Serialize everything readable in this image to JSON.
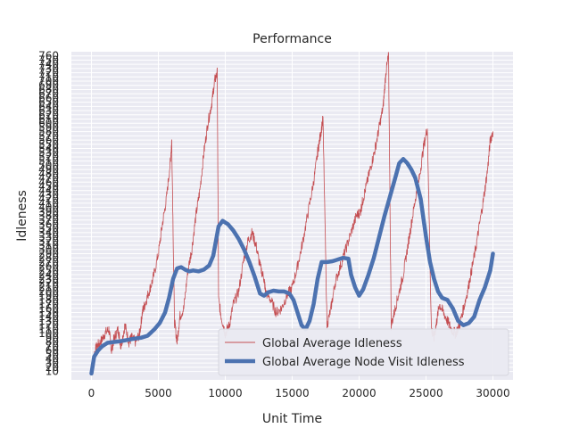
{
  "chart_data": {
    "type": "line",
    "title": "Performance",
    "xlabel": "Unit Time",
    "ylabel": "Idleness",
    "xlim": [
      -1500,
      31500
    ],
    "ylim": [
      -10,
      770
    ],
    "x_ticks": [
      0,
      5000,
      10000,
      15000,
      20000,
      25000,
      30000
    ],
    "x_tick_labels": [
      "0",
      "5000",
      "10000",
      "15000",
      "20000",
      "25000",
      "30000"
    ],
    "y_ticks": [
      10,
      20,
      30,
      40,
      50,
      60,
      70,
      80,
      90,
      100,
      110,
      120,
      130,
      140,
      150,
      160,
      170,
      180,
      190,
      200,
      210,
      220,
      230,
      240,
      250,
      260,
      270,
      280,
      290,
      300,
      310,
      320,
      330,
      340,
      350,
      360,
      370,
      380,
      390,
      400,
      410,
      420,
      430,
      440,
      450,
      460,
      470,
      480,
      490,
      500,
      510,
      520,
      530,
      540,
      550,
      560,
      570,
      580,
      590,
      600,
      610,
      620,
      630,
      640,
      650,
      660,
      670,
      680,
      690,
      700,
      710,
      720,
      730,
      740,
      750,
      760
    ],
    "y_tick_labels": [
      "10",
      "20",
      "30",
      "40",
      "50",
      "60",
      "70",
      "80",
      "90",
      "100",
      "110",
      "120",
      "130",
      "140",
      "150",
      "160",
      "170",
      "180",
      "190",
      "200",
      "210",
      "220",
      "230",
      "240",
      "250",
      "260",
      "270",
      "280",
      "290",
      "300",
      "310",
      "320",
      "330",
      "340",
      "350",
      "360",
      "370",
      "380",
      "390",
      "400",
      "410",
      "420",
      "430",
      "440",
      "450",
      "460",
      "470",
      "480",
      "490",
      "500",
      "510",
      "520",
      "530",
      "540",
      "550",
      "560",
      "570",
      "580",
      "590",
      "600",
      "610",
      "620",
      "630",
      "640",
      "650",
      "660",
      "670",
      "680",
      "690",
      "700",
      "710",
      "720",
      "730",
      "740",
      "750",
      "760"
    ],
    "grid": true,
    "legend_position": "lower-right",
    "series": [
      {
        "name": "Global Average Idleness",
        "color": "#c44e52",
        "style": "thin-noisy",
        "x": [
          0,
          200,
          400,
          700,
          1000,
          1300,
          1500,
          1700,
          2000,
          2200,
          2500,
          2800,
          3000,
          3300,
          3600,
          3800,
          4000,
          4300,
          4600,
          5000,
          5300,
          5600,
          5900,
          6000,
          6200,
          6400,
          6600,
          6900,
          7200,
          7500,
          7800,
          8100,
          8400,
          8700,
          9000,
          9200,
          9400,
          9500,
          9700,
          10000,
          10300,
          10600,
          11000,
          11400,
          11700,
          12000,
          12300,
          12600,
          12900,
          13000,
          13400,
          13800,
          14200,
          14600,
          15000,
          15400,
          15800,
          16200,
          16600,
          16900,
          17100,
          17300,
          17600,
          17900,
          18200,
          18600,
          19000,
          19400,
          19800,
          20100,
          20300,
          20600,
          20900,
          21200,
          21500,
          21800,
          22000,
          22200,
          22400,
          22700,
          23000,
          23300,
          23600,
          23900,
          24200,
          24500,
          24800,
          25100,
          25400,
          25600,
          25800,
          26000,
          26300,
          26600,
          26900,
          27200,
          27500,
          27800,
          28100,
          28400,
          28700,
          29000,
          29300,
          29600,
          29800,
          30000
        ],
        "y": [
          10,
          50,
          70,
          80,
          100,
          110,
          60,
          90,
          110,
          70,
          120,
          80,
          90,
          80,
          100,
          150,
          170,
          200,
          230,
          290,
          360,
          420,
          510,
          560,
          130,
          80,
          140,
          160,
          250,
          300,
          380,
          440,
          530,
          600,
          650,
          700,
          720,
          180,
          140,
          100,
          120,
          170,
          200,
          280,
          320,
          340,
          310,
          260,
          230,
          200,
          180,
          150,
          160,
          190,
          210,
          260,
          320,
          390,
          460,
          530,
          570,
          610,
          120,
          160,
          220,
          260,
          300,
          340,
          380,
          390,
          420,
          460,
          500,
          540,
          590,
          640,
          720,
          760,
          120,
          160,
          200,
          240,
          300,
          360,
          420,
          470,
          540,
          590,
          110,
          90,
          130,
          170,
          150,
          130,
          110,
          100,
          120,
          160,
          200,
          250,
          300,
          360,
          420,
          490,
          560,
          580
        ]
      },
      {
        "name": "Global Average Node Visit Idleness",
        "color": "#4c72b0",
        "style": "thick-smooth",
        "x": [
          0,
          200,
          500,
          800,
          1200,
          1700,
          2200,
          2700,
          3200,
          3700,
          4200,
          4700,
          5100,
          5500,
          5800,
          6100,
          6400,
          6700,
          7000,
          7300,
          7600,
          8000,
          8400,
          8800,
          9100,
          9300,
          9500,
          9800,
          10200,
          10600,
          11000,
          11400,
          11800,
          12200,
          12600,
          12900,
          13200,
          13600,
          14000,
          14400,
          14800,
          15100,
          15400,
          15700,
          16000,
          16300,
          16600,
          16900,
          17200,
          17600,
          18000,
          18400,
          18800,
          19200,
          19400,
          19700,
          20000,
          20300,
          20700,
          21100,
          21500,
          21900,
          22300,
          22700,
          23000,
          23300,
          23600,
          23900,
          24200,
          24600,
          25000,
          25300,
          25600,
          25900,
          26200,
          26600,
          27000,
          27400,
          27800,
          28200,
          28600,
          29000,
          29400,
          29800,
          30000
        ],
        "y": [
          5,
          45,
          60,
          70,
          78,
          80,
          82,
          85,
          88,
          90,
          95,
          110,
          125,
          150,
          185,
          230,
          255,
          258,
          252,
          248,
          250,
          248,
          252,
          262,
          285,
          320,
          355,
          368,
          360,
          345,
          325,
          300,
          270,
          235,
          195,
          190,
          198,
          202,
          200,
          200,
          195,
          180,
          150,
          120,
          110,
          130,
          170,
          230,
          270,
          270,
          272,
          276,
          280,
          278,
          240,
          210,
          190,
          205,
          240,
          280,
          330,
          380,
          425,
          470,
          505,
          515,
          505,
          490,
          470,
          420,
          330,
          270,
          230,
          200,
          185,
          180,
          160,
          130,
          120,
          125,
          140,
          180,
          210,
          250,
          290
        ]
      }
    ]
  }
}
